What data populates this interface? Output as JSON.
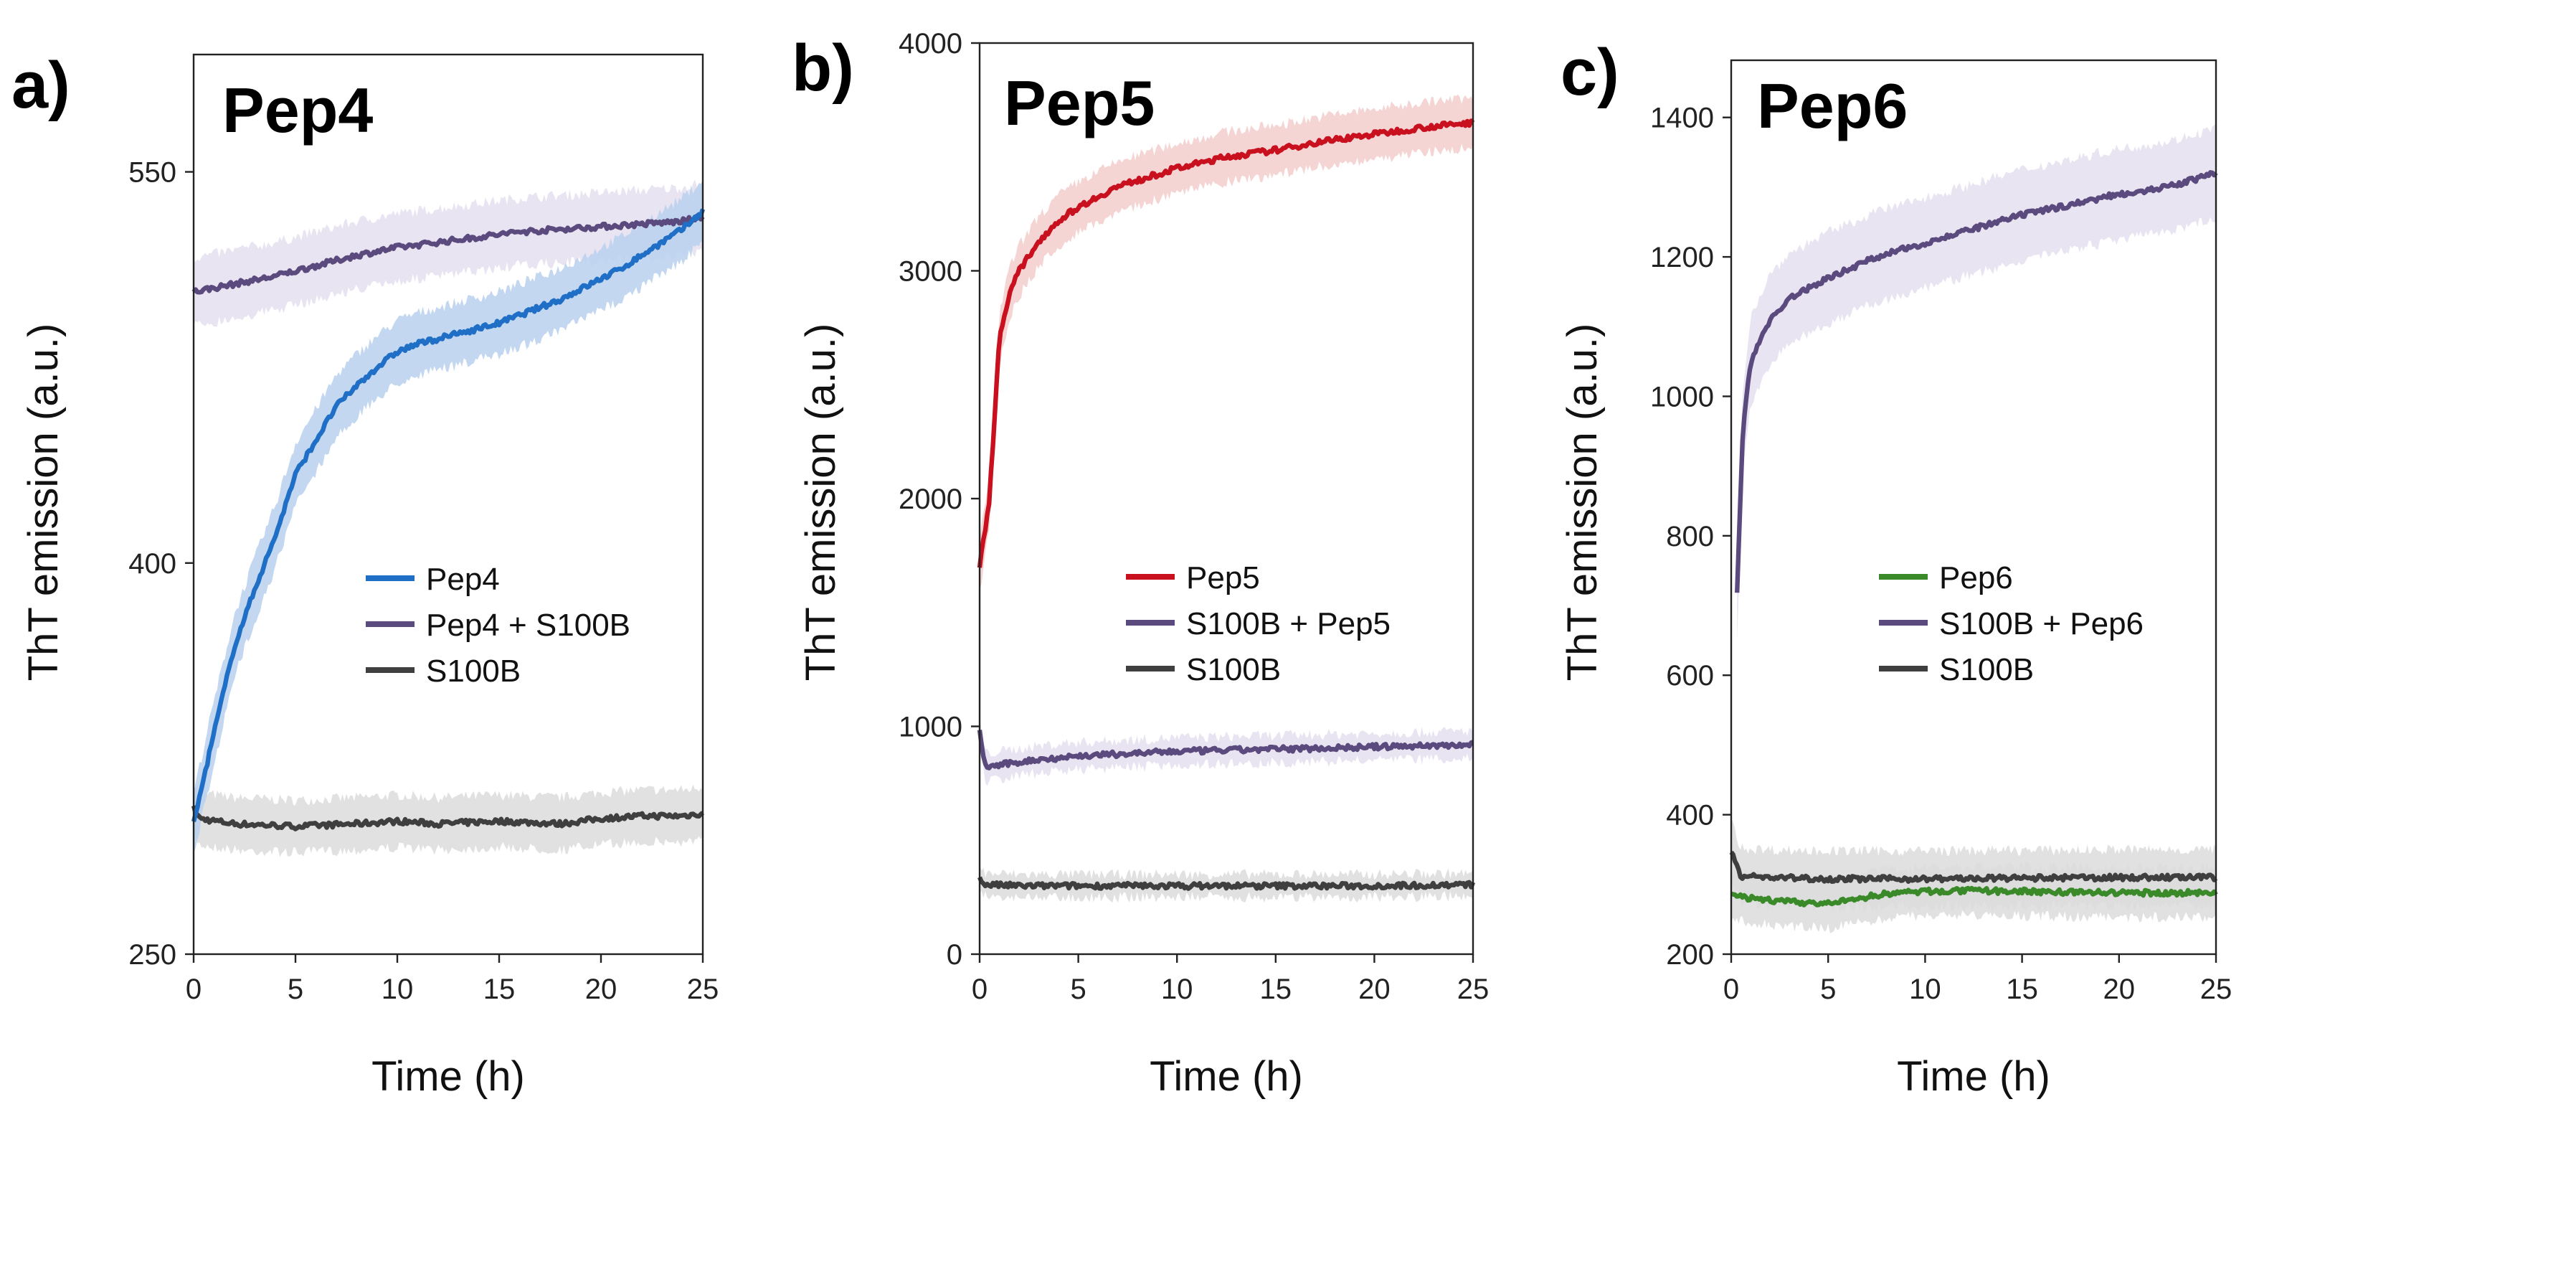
{
  "chart_data": [
    {
      "type": "line",
      "panel_label": "a)",
      "title": "Pep4",
      "xlabel": "Time (h)",
      "ylabel": "ThT emission (a.u.)",
      "xlim": [
        0,
        25
      ],
      "ylim": [
        250,
        595
      ],
      "xticks": [
        0,
        5,
        10,
        15,
        20,
        25
      ],
      "yticks": [
        250,
        400,
        550
      ],
      "legend_position": "center-right",
      "series": [
        {
          "name": "Pep4",
          "color": "#1f6fc6",
          "band_color": "#b9d0ef",
          "x": [
            0,
            1,
            2,
            3,
            4,
            5,
            6,
            7,
            8,
            9,
            10,
            11,
            12,
            13,
            14,
            15,
            16,
            17,
            18,
            19,
            20,
            21,
            22,
            23,
            24,
            25
          ],
          "y": [
            300,
            335,
            368,
            390,
            410,
            434,
            447,
            460,
            468,
            475,
            481,
            484,
            486,
            488,
            490,
            492,
            495,
            498,
            501,
            505,
            509,
            513,
            518,
            523,
            528,
            535
          ],
          "error": 12
        },
        {
          "name": "Pep4 + S100B",
          "color": "#5b4a7e",
          "band_color": "#e5dfee",
          "x": [
            0,
            2,
            4,
            6,
            8,
            10,
            12,
            14,
            16,
            18,
            20,
            22,
            24,
            25
          ],
          "y": [
            504,
            507,
            510,
            514,
            518,
            521,
            523,
            525,
            527,
            528,
            529,
            530,
            531,
            533
          ],
          "error": 13
        },
        {
          "name": "S100B",
          "color": "#3f3f3f",
          "band_color": "#dcdcdc",
          "x": [
            0,
            0.3,
            2,
            5,
            8,
            10,
            12,
            15,
            18,
            20,
            22,
            24,
            25
          ],
          "y": [
            306,
            302,
            300,
            299,
            300,
            301,
            300,
            301,
            300,
            302,
            303,
            303,
            304
          ],
          "error": 10
        }
      ]
    },
    {
      "type": "line",
      "panel_label": "b)",
      "title": "Pep5",
      "xlabel": "Time (h)",
      "ylabel": "ThT emission (a.u.)",
      "xlim": [
        0,
        25
      ],
      "ylim": [
        0,
        4000
      ],
      "xticks": [
        0,
        5,
        10,
        15,
        20,
        25
      ],
      "yticks": [
        0,
        1000,
        2000,
        3000,
        4000
      ],
      "legend_position": "center-right",
      "series": [
        {
          "name": "Pep5",
          "color": "#c8101e",
          "band_color": "#f3cccc",
          "x": [
            0,
            0.5,
            1,
            1.5,
            2,
            3,
            4,
            5,
            7,
            10,
            12.5,
            15,
            17.5,
            20,
            22.5,
            25
          ],
          "y": [
            1700,
            2000,
            2700,
            2900,
            3000,
            3130,
            3220,
            3280,
            3370,
            3450,
            3500,
            3530,
            3570,
            3600,
            3630,
            3650
          ],
          "error": 110
        },
        {
          "name": "S100B + Pep5",
          "color": "#5b4a7e",
          "band_color": "#e5dfee",
          "x": [
            0,
            0.3,
            1,
            3,
            5,
            10,
            15,
            20,
            25
          ],
          "y": [
            980,
            820,
            830,
            855,
            870,
            890,
            900,
            910,
            920
          ],
          "error": 60
        },
        {
          "name": "S100B",
          "color": "#3f3f3f",
          "band_color": "#dcdcdc",
          "x": [
            0,
            0.3,
            2,
            5,
            10,
            15,
            20,
            25
          ],
          "y": [
            330,
            305,
            300,
            300,
            300,
            300,
            300,
            305
          ],
          "error": 50
        }
      ]
    },
    {
      "type": "line",
      "panel_label": "c)",
      "title": "Pep6",
      "xlabel": "Time (h)",
      "ylabel": "ThT emission (a.u.)",
      "xlim": [
        0,
        25
      ],
      "ylim": [
        200,
        1482
      ],
      "xticks": [
        0,
        5,
        10,
        15,
        20,
        25
      ],
      "yticks": [
        200,
        400,
        600,
        800,
        1000,
        1200,
        1400
      ],
      "legend_position": "center-right",
      "series": [
        {
          "name": "Pep6",
          "color": "#3a8a2a",
          "band_color": "#dcdcdc",
          "x": [
            0,
            1,
            3,
            5,
            7,
            8,
            10,
            12.5,
            15,
            17.5,
            20,
            22.5,
            25
          ],
          "y": [
            285,
            280,
            275,
            272,
            282,
            287,
            290,
            291,
            290,
            289,
            288,
            288,
            288
          ],
          "error": 35
        },
        {
          "name": "S100B + Pep6",
          "color": "#5b4a7e",
          "band_color": "#e5dfee",
          "x": [
            0.3,
            0.6,
            1,
            2,
            3,
            5,
            7.5,
            10,
            12.5,
            15,
            17.5,
            20,
            22.5,
            25
          ],
          "y": [
            720,
            950,
            1050,
            1110,
            1140,
            1170,
            1200,
            1220,
            1240,
            1260,
            1275,
            1290,
            1300,
            1320
          ],
          "error": 65
        },
        {
          "name": "S100B",
          "color": "#3f3f3f",
          "band_color": "#dcdcdc",
          "x": [
            0,
            0.5,
            2,
            5,
            10,
            15,
            20,
            25
          ],
          "y": [
            350,
            312,
            310,
            308,
            308,
            309,
            310,
            310
          ],
          "error": 40
        }
      ]
    }
  ]
}
